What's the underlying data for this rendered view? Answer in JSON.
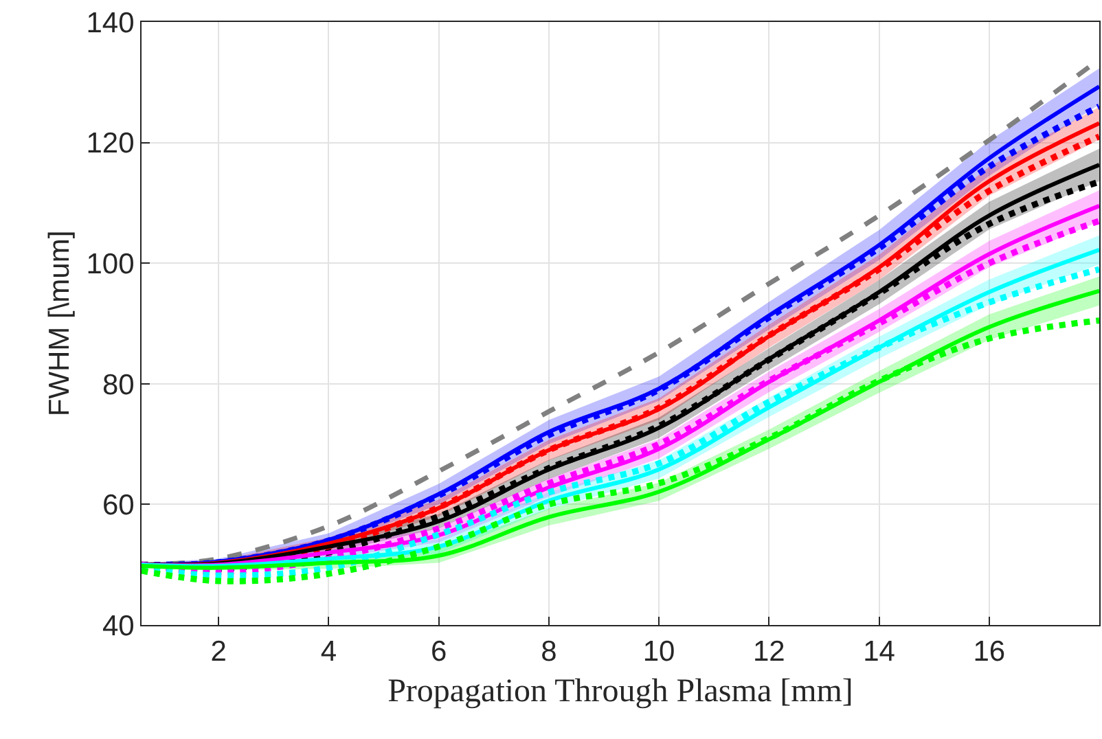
{
  "chart_data": {
    "type": "line",
    "xlabel": "Propagation Through Plasma [mm]",
    "ylabel": "FWHM [\\mum]",
    "x": [
      0.6,
      2,
      4,
      6,
      8,
      10,
      12,
      14,
      16,
      18
    ],
    "xlim": [
      0.6,
      18
    ],
    "xticks": [
      2,
      4,
      6,
      8,
      10,
      12,
      14,
      16
    ],
    "ylim": [
      40,
      140
    ],
    "yticks": [
      40,
      60,
      80,
      100,
      120,
      140
    ],
    "grid": true,
    "marker": "none",
    "series": [
      {
        "color": "#808080",
        "line_style": "dashed",
        "values": [
          50,
          51,
          56.4,
          65.5,
          75.4,
          85.2,
          96.6,
          107.9,
          120.4,
          133.8
        ]
      },
      {
        "color": "#0000ff",
        "line_style": "solid",
        "values": [
          50,
          50.5,
          54.1,
          61.7,
          72,
          79.2,
          91.3,
          103,
          117.4,
          129.3
        ],
        "lower": [
          49.7,
          50,
          53,
          60,
          70,
          77.2,
          89,
          100.5,
          114.5,
          126.3
        ],
        "upper": [
          50.3,
          51,
          55.2,
          63.4,
          74,
          81.2,
          93.6,
          105.5,
          120.3,
          132.3
        ]
      },
      {
        "color": "#0000ff",
        "line_style": "dotted",
        "values": [
          50,
          50.4,
          54,
          61.5,
          71.5,
          79,
          91,
          102.5,
          116,
          126
        ]
      },
      {
        "color": "#ff0000",
        "line_style": "solid",
        "values": [
          50,
          50.3,
          53.5,
          59.4,
          69,
          75.8,
          87.9,
          99.3,
          113.6,
          123.2
        ],
        "lower": [
          49.7,
          49.9,
          52.5,
          58,
          67.3,
          74,
          86,
          97.2,
          111.2,
          120.5
        ],
        "upper": [
          50.3,
          50.7,
          54.5,
          60.8,
          70.7,
          77.6,
          89.8,
          101.4,
          116,
          125.9
        ]
      },
      {
        "color": "#ff0000",
        "line_style": "dotted",
        "values": [
          50,
          49.7,
          53,
          59.5,
          69,
          76,
          88,
          99,
          112,
          121
        ]
      },
      {
        "color": "#000000",
        "line_style": "solid",
        "values": [
          50,
          50.2,
          53,
          57.2,
          65.8,
          72.7,
          84.1,
          95.2,
          107.9,
          116.3
        ],
        "lower": [
          49.7,
          49.8,
          52,
          56,
          64.2,
          71,
          82.3,
          93.2,
          105.6,
          113.6
        ],
        "upper": [
          50.3,
          50.6,
          54,
          58.4,
          67.4,
          74.4,
          85.9,
          97.2,
          110.2,
          119
        ]
      },
      {
        "color": "#000000",
        "line_style": "dotted",
        "values": [
          50,
          49.3,
          52,
          58,
          66,
          73,
          84,
          95,
          106.5,
          113.5
        ]
      },
      {
        "color": "#ff00ff",
        "line_style": "solid",
        "values": [
          50,
          50,
          52,
          54.9,
          62.8,
          69.2,
          80.3,
          90.5,
          101.5,
          109.5
        ],
        "lower": [
          49.7,
          49.6,
          51,
          53.7,
          61.3,
          67.6,
          78.6,
          88.6,
          99.3,
          106.9
        ],
        "upper": [
          50.3,
          50.4,
          53,
          56.1,
          64.3,
          70.8,
          82,
          92.4,
          103.7,
          112.1
        ]
      },
      {
        "color": "#ff00ff",
        "line_style": "dotted",
        "values": [
          50,
          48.8,
          51,
          56,
          63.5,
          70,
          80.5,
          90,
          100,
          107
        ]
      },
      {
        "color": "#00ffff",
        "line_style": "solid",
        "values": [
          50,
          49.8,
          51,
          53,
          60.6,
          65.8,
          76.1,
          86,
          95.2,
          102.2
        ],
        "lower": [
          49.7,
          49.4,
          50,
          51.8,
          59.2,
          64.3,
          74.5,
          84.2,
          93.1,
          99.8
        ],
        "upper": [
          50.3,
          50.2,
          52,
          54.2,
          62,
          67.3,
          77.7,
          87.8,
          97.3,
          104.6
        ]
      },
      {
        "color": "#00ffff",
        "line_style": "dotted",
        "values": [
          49.5,
          48.2,
          49.5,
          55,
          62,
          66.8,
          77,
          86,
          93.5,
          99
        ]
      },
      {
        "color": "#00ff00",
        "line_style": "solid",
        "values": [
          49.8,
          49.5,
          50.3,
          51.5,
          57.9,
          62.1,
          70.8,
          80.3,
          89.4,
          95.4
        ],
        "lower": [
          49.5,
          49.1,
          49.3,
          50.3,
          56.5,
          60.6,
          69.2,
          78.5,
          87.3,
          93
        ],
        "upper": [
          50.1,
          49.9,
          51.3,
          52.7,
          59.3,
          63.6,
          72.4,
          82.1,
          91.5,
          97.8
        ]
      },
      {
        "color": "#00ff00",
        "line_style": "dotted",
        "values": [
          49,
          47.3,
          48.5,
          53,
          60,
          63.5,
          71,
          80.5,
          87.5,
          90.5
        ]
      }
    ]
  }
}
